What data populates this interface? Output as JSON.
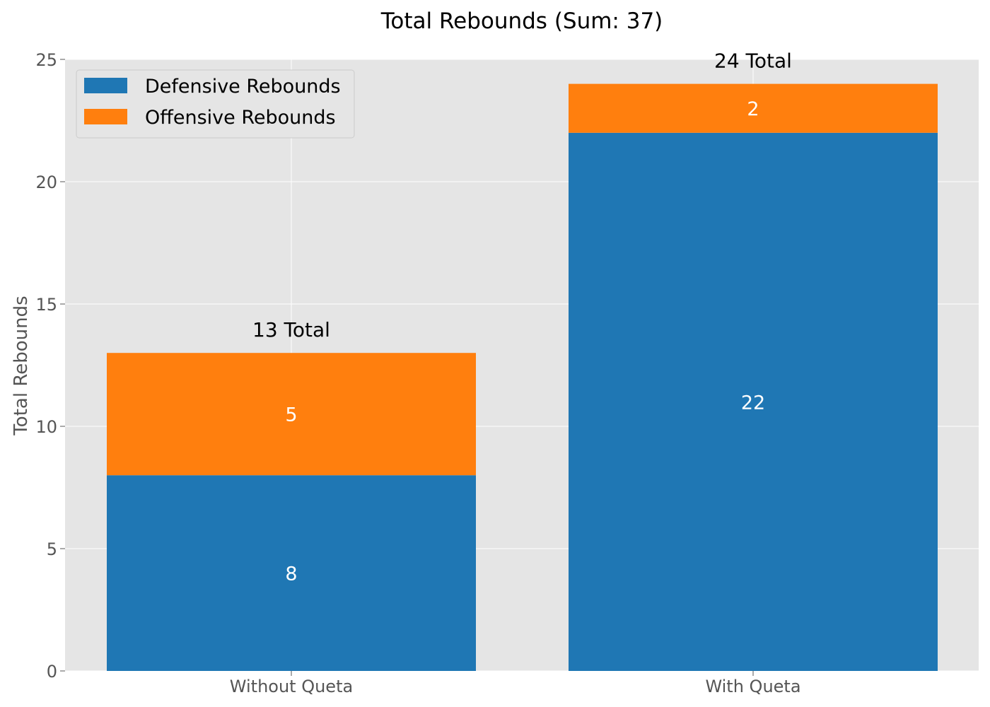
{
  "chart_data": {
    "type": "bar",
    "stacked": true,
    "title": "Total Rebounds (Sum: 37)",
    "xlabel": "",
    "ylabel": "Total Rebounds",
    "ylim": [
      0,
      25
    ],
    "yticks": [
      0,
      5,
      10,
      15,
      20,
      25
    ],
    "grid": true,
    "legend_position": "top-left",
    "categories": [
      "Without Queta",
      "With Queta"
    ],
    "series": [
      {
        "name": "Defensive Rebounds",
        "color": "#1f77b4",
        "values": [
          8,
          22
        ]
      },
      {
        "name": "Offensive Rebounds",
        "color": "#ff7f0e",
        "values": [
          5,
          2
        ]
      }
    ],
    "value_labels": [
      [
        "8",
        "22"
      ],
      [
        "5",
        "2"
      ]
    ],
    "total_labels": [
      "13 Total",
      "24 Total"
    ],
    "colors": {
      "plot_background": "#e5e5e5",
      "grid": "#ffffff"
    }
  }
}
